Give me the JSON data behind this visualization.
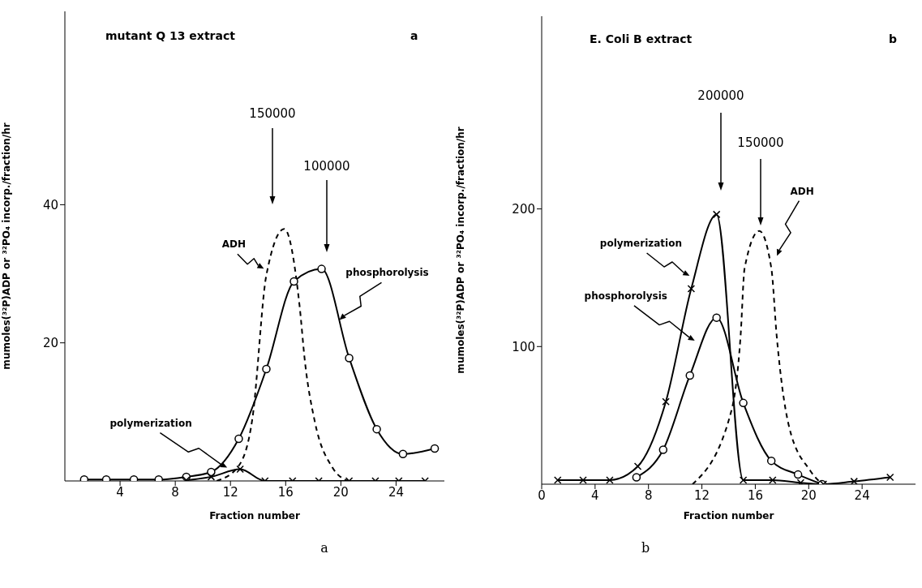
{
  "chart_data": [
    {
      "type": "line",
      "title": "mutant Q 13 extract",
      "xlabel": "Fraction number",
      "ylabel": "mumoles(³²P)ADP or ³²PO₄ incorp./fraction/hr",
      "xlim": [
        0,
        27.5
      ],
      "xticks": [
        4,
        8,
        12,
        16,
        20,
        24
      ],
      "ylim": [
        0,
        68
      ],
      "yticks": [
        20,
        40
      ],
      "annotations": [
        "a",
        "a",
        "150000",
        "100000"
      ],
      "series": [
        {
          "name": "ADH",
          "color": "#000000",
          "marker": "none",
          "line_style": "dashed",
          "x": [
            11,
            12.6,
            13.6,
            14.6,
            15.9,
            17,
            17.4,
            18.1,
            19.4,
            20.5
          ],
          "values": [
            0,
            2.2,
            9.2,
            29.8,
            36.5,
            25.5,
            17.2,
            8.7,
            1.9,
            0
          ]
        },
        {
          "name": "phosphorolysis",
          "color": "#000000",
          "marker": "circle",
          "line_style": "solid",
          "x": [
            1.4,
            3,
            5,
            6.8,
            8.8,
            10.6,
            12.6,
            14.6,
            16.6,
            18.6,
            20.6,
            22.6,
            24.5,
            26.8
          ],
          "values": [
            0.2,
            0.2,
            0.2,
            0.2,
            0.6,
            1.3,
            6.1,
            16.2,
            28.9,
            30.7,
            17.8,
            7.5,
            3.9,
            4.7
          ]
        },
        {
          "name": "polymerization",
          "color": "#000000",
          "marker": "cross",
          "line_style": "solid",
          "x": [
            8.8,
            10.6,
            12.7,
            14.5,
            16.5,
            18.4,
            20.6,
            22.5,
            24.2,
            26.1
          ],
          "values": [
            0.1,
            0.6,
            1.7,
            0,
            0,
            0,
            0,
            0,
            0,
            0
          ]
        }
      ]
    },
    {
      "type": "line",
      "title": "E. Coli B extract",
      "xlabel": "Fraction number",
      "ylabel": "mumoles(³²P)ADP or ³²PO₄ incorp./fraction/hr",
      "xlim": [
        0,
        28
      ],
      "xticks": [
        0,
        4,
        8,
        12,
        16,
        20,
        24
      ],
      "ylim": [
        0,
        340
      ],
      "yticks": [
        100,
        200
      ],
      "annotations": [
        "b",
        "b",
        "200000",
        "150000"
      ],
      "series": [
        {
          "name": "ADH",
          "color": "#000000",
          "marker": "none",
          "line_style": "dashed",
          "x": [
            11.3,
            14.2,
            14.9,
            15.2,
            16.3,
            17.2,
            17.6,
            18.5,
            20.1,
            21
          ],
          "values": [
            0,
            53,
            108,
            157,
            184,
            157,
            108,
            43,
            10,
            0
          ]
        },
        {
          "name": "phosphorolysis",
          "color": "#000000",
          "marker": "circle",
          "line_style": "solid",
          "x": [
            7.1,
            9.1,
            11.1,
            13.1,
            15.1,
            17.2,
            19.2,
            21
          ],
          "values": [
            5,
            25,
            79,
            121,
            59,
            17,
            7,
            0
          ]
        },
        {
          "name": "polymerization",
          "color": "#000000",
          "marker": "cross",
          "line_style": "solid",
          "x": [
            1.2,
            3.1,
            5.1,
            7.2,
            9.3,
            11.2,
            13.1,
            15.1,
            17.3,
            19.4,
            21.1,
            23.4,
            26.1
          ],
          "values": [
            3,
            3,
            3,
            13,
            60,
            142,
            196,
            3,
            3,
            1,
            0,
            2,
            5
          ]
        }
      ]
    }
  ]
}
